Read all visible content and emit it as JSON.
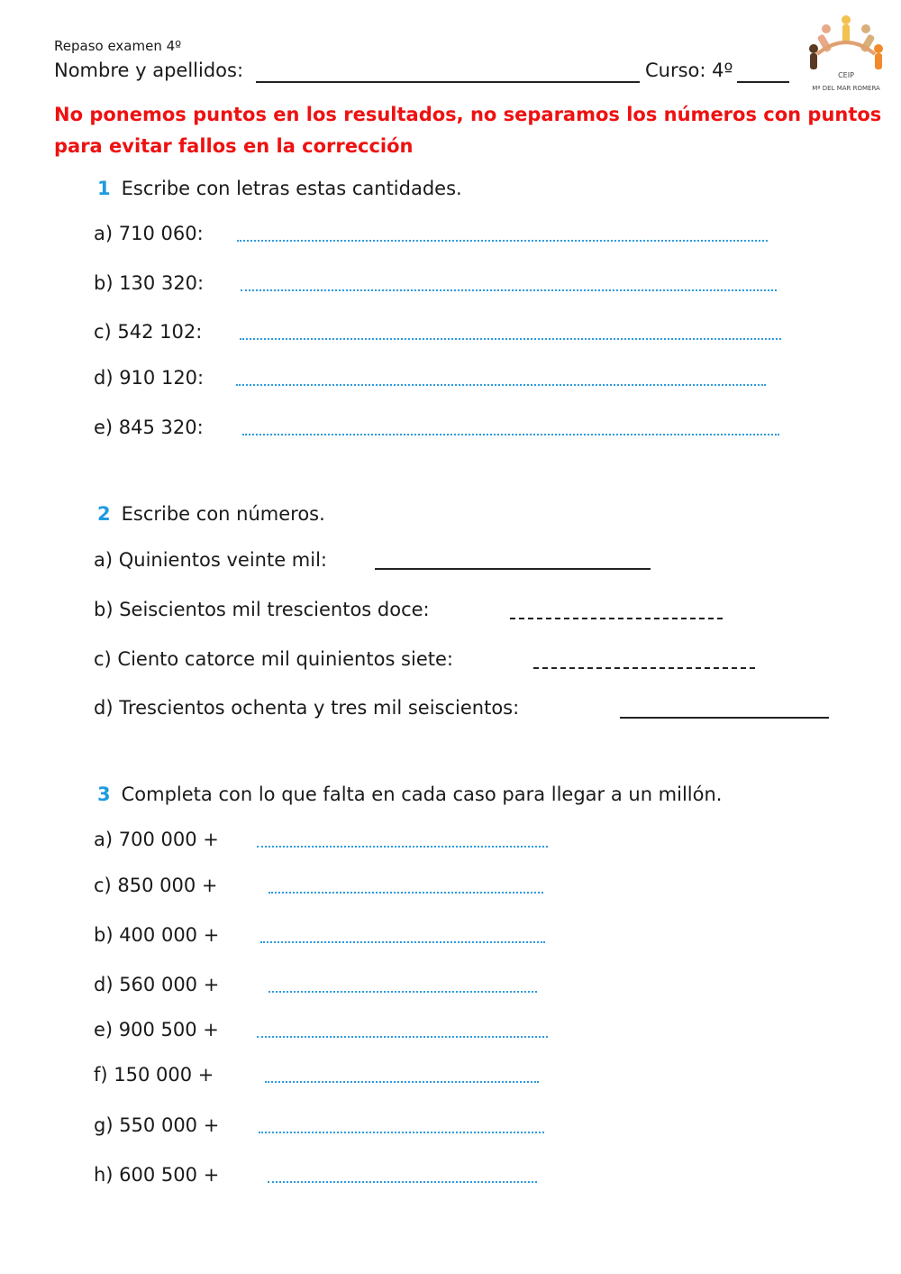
{
  "header": {
    "subtitle": "Repaso examen 4º",
    "name_label": "Nombre y apellidos:",
    "course_label": "Curso: 4º",
    "logo_text": "CEIP Mª DEL MAR ROMERA"
  },
  "warning": {
    "line1": "No ponemos puntos en los resultados, no separamos los números con puntos",
    "line2": "para evitar fallos en la corrección"
  },
  "section1": {
    "number": "1",
    "title": "Escribe con letras estas  cantidades.",
    "items": [
      {
        "label": "a)  710 060:"
      },
      {
        "label": "b)  130 320:"
      },
      {
        "label": "c)  542 102:"
      },
      {
        "label": "d)  910 120:"
      },
      {
        "label": "e)  845 320:"
      }
    ]
  },
  "section2": {
    "number": "2",
    "title": "Escribe con números.",
    "items": [
      {
        "label": "a) Quinientos veinte mil:"
      },
      {
        "label": "b) Seiscientos mil trescientos doce:"
      },
      {
        "label": "c) Ciento catorce mil quinientos siete:"
      },
      {
        "label": "d) Trescientos ochenta y tres mil seiscientos:"
      }
    ]
  },
  "section3": {
    "number": "3",
    "title": "Completa con lo que falta en cada caso para llegar a un millón.",
    "items": [
      {
        "label": "a)  700 000  +"
      },
      {
        "label": "c)   850 000   +"
      },
      {
        "label": "b)  400 000  +"
      },
      {
        "label": "d)   560 000   +"
      },
      {
        "label": "e)  900 500  +"
      },
      {
        "label": "f)   150 000   +"
      },
      {
        "label": "g)  550 000  +"
      },
      {
        "label": "h)   600 500   +"
      }
    ]
  },
  "colors": {
    "accent": "#1e9be0",
    "warning": "#ee1111",
    "dotted_line": "#2b9be0"
  }
}
